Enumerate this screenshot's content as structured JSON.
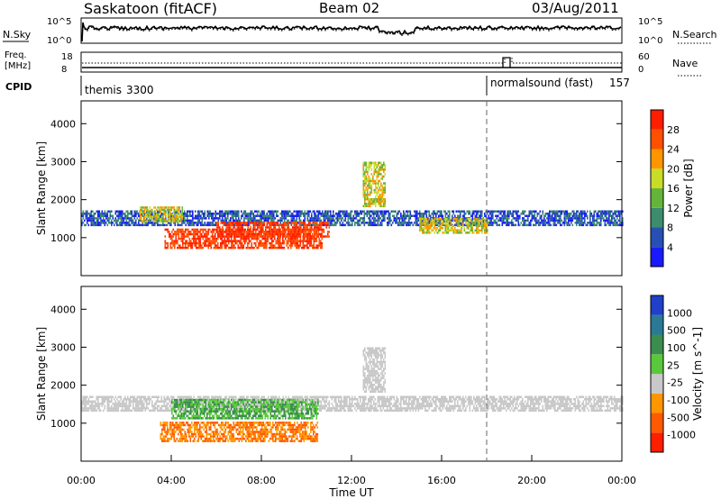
{
  "header": {
    "title": "Saskatoon (fitACF)",
    "beam": "Beam 02",
    "date": "03/Aug/2011"
  },
  "top_panels": {
    "nsky_label": "N.Sky",
    "nsearch_label": "N.Search",
    "nsky_ticks": [
      "10^5",
      "10^0"
    ],
    "nsky_ticks_right": [
      "10^5",
      "10^0"
    ],
    "freq_label_1": "Freq.",
    "freq_label_2": "[MHz]",
    "freq_ticks": [
      "18",
      "8"
    ],
    "nave_label": "Nave",
    "nave_ticks": [
      "60",
      "0"
    ],
    "cpid_label": "CPID",
    "cpid_segments": [
      {
        "name": "themis",
        "id": "3300",
        "start_hour": 0,
        "end_hour": 18
      },
      {
        "name": "normalsound (fast)",
        "id": "157",
        "start_hour": 18,
        "end_hour": 24
      }
    ]
  },
  "chart_data": [
    {
      "type": "heatmap",
      "ylabel": "Slant Range [km]",
      "xlim": [
        0,
        24
      ],
      "ylim": [
        0,
        4600
      ],
      "y_ticks": [
        1000,
        2000,
        3000,
        4000
      ],
      "colorbar": {
        "label": "Power [dB]",
        "tick_labels": [
          "4",
          "8",
          "12",
          "16",
          "20",
          "24",
          "28"
        ],
        "colors": [
          "#1a1aff",
          "#2850b4",
          "#3c8c6e",
          "#64b43c",
          "#c8dc28",
          "#ff9600",
          "#ff5000",
          "#ff1e00"
        ]
      },
      "echo_bands": [
        {
          "t_start": 0.0,
          "t_end": 24.0,
          "r_low": 1300,
          "r_high": 1700,
          "level": "low"
        },
        {
          "t_start": 2.6,
          "t_end": 4.5,
          "r_low": 1400,
          "r_high": 1800,
          "level": "medium"
        },
        {
          "t_start": 3.7,
          "t_end": 10.7,
          "r_low": 700,
          "r_high": 1200,
          "level": "high"
        },
        {
          "t_start": 6.0,
          "t_end": 11.0,
          "r_low": 1000,
          "r_high": 1400,
          "level": "high"
        },
        {
          "t_start": 12.5,
          "t_end": 13.5,
          "r_low": 1800,
          "r_high": 3000,
          "level": "medium"
        },
        {
          "t_start": 15.0,
          "t_end": 18.0,
          "r_low": 1100,
          "r_high": 1500,
          "level": "medium"
        }
      ]
    },
    {
      "type": "heatmap",
      "ylabel": "Slant Range [km]",
      "xlabel": "Time UT",
      "xlim": [
        0,
        24
      ],
      "ylim": [
        0,
        4600
      ],
      "y_ticks": [
        1000,
        2000,
        3000,
        4000
      ],
      "x_tick_labels": [
        "00:00",
        "04:00",
        "08:00",
        "12:00",
        "16:00",
        "20:00",
        "00:00"
      ],
      "x_ticks_hours": [
        0,
        4,
        8,
        12,
        16,
        20,
        24
      ],
      "colorbar": {
        "label": "Velocity [m s^-1]",
        "tick_labels": [
          "1000",
          "500",
          "100",
          "25",
          "-25",
          "-100",
          "-500",
          "-1000"
        ],
        "colors": [
          "#2040c8",
          "#2a7a96",
          "#3c8c50",
          "#5ac83c",
          "#c8c8c8",
          "#ff9600",
          "#ff5a00",
          "#ff1e00"
        ]
      },
      "echo_bands": [
        {
          "t_start": 0.0,
          "t_end": 24.0,
          "r_low": 1300,
          "r_high": 1700,
          "level": "ground"
        },
        {
          "t_start": 4.0,
          "t_end": 10.5,
          "r_low": 1100,
          "r_high": 1600,
          "level": "toward"
        },
        {
          "t_start": 3.5,
          "t_end": 10.5,
          "r_low": 500,
          "r_high": 1000,
          "level": "away"
        },
        {
          "t_start": 12.5,
          "t_end": 13.5,
          "r_low": 1800,
          "r_high": 3000,
          "level": "ground"
        }
      ]
    }
  ]
}
